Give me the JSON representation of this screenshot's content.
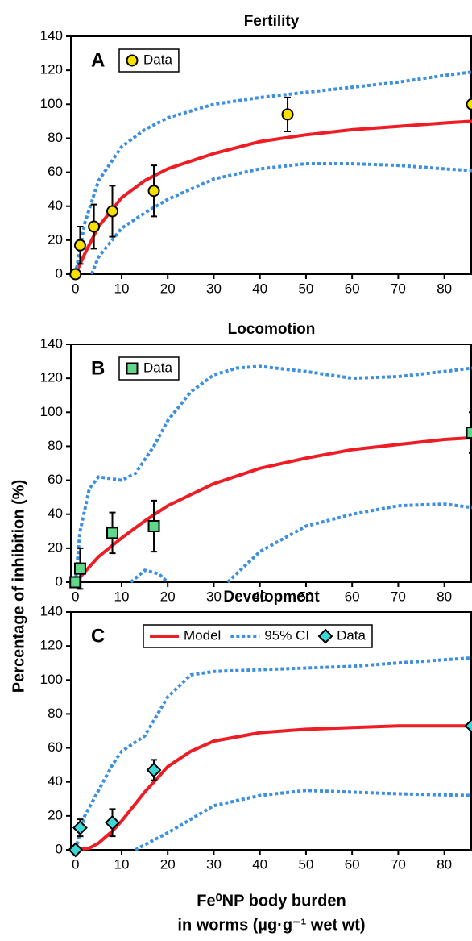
{
  "chart_data": [
    {
      "type": "line",
      "title": "Fertility",
      "panel_label": "A",
      "xlim": [
        -1,
        86
      ],
      "xticks": [
        0,
        10,
        20,
        30,
        40,
        50,
        60,
        70,
        80
      ],
      "ylim": [
        0,
        140
      ],
      "yticks": [
        0,
        20,
        40,
        60,
        80,
        100,
        120,
        140
      ],
      "series": [
        {
          "mode": "line",
          "color": "#ee1c25",
          "x": [
            0,
            2,
            5,
            10,
            15,
            20,
            30,
            40,
            50,
            60,
            70,
            80,
            86
          ],
          "values": [
            0,
            12,
            28,
            45,
            55,
            62,
            71,
            78,
            82,
            85,
            87,
            89,
            90
          ]
        },
        {
          "mode": "line",
          "style": "dotted",
          "color": "#3d8fe0",
          "x": [
            0,
            2,
            5,
            10,
            15,
            20,
            30,
            40,
            50,
            60,
            70,
            80,
            86
          ],
          "values": [
            0,
            30,
            55,
            75,
            85,
            92,
            100,
            104,
            107,
            110,
            113,
            117,
            119
          ]
        },
        {
          "mode": "line",
          "style": "dotted",
          "color": "#3d8fe0",
          "x": [
            3.5,
            5,
            10,
            15,
            20,
            30,
            40,
            50,
            60,
            70,
            80,
            86
          ],
          "values": [
            0,
            10,
            27,
            36,
            44,
            56,
            62,
            65,
            65,
            64,
            62,
            61
          ]
        },
        {
          "mode": "markers",
          "name": "Data",
          "marker": "circle",
          "color": "#f5e000",
          "x": [
            0,
            1,
            4,
            8,
            17,
            46,
            86
          ],
          "values": [
            0,
            17,
            28,
            37,
            49,
            94,
            100
          ],
          "errors": [
            null,
            11,
            13,
            15,
            15,
            10,
            null
          ]
        }
      ]
    },
    {
      "type": "line",
      "title": "Locomotion",
      "panel_label": "B",
      "ylabel": "Percentage of inhibition (%)",
      "xlim": [
        -1,
        86
      ],
      "xticks": [
        0,
        10,
        20,
        30,
        40,
        50,
        60,
        70,
        80
      ],
      "ylim": [
        0,
        140
      ],
      "yticks": [
        0,
        20,
        40,
        60,
        80,
        100,
        120,
        140
      ],
      "series": [
        {
          "mode": "line",
          "color": "#ee1c25",
          "x": [
            0,
            5,
            10,
            15,
            20,
            30,
            40,
            50,
            60,
            70,
            80,
            86
          ],
          "values": [
            0,
            15,
            26,
            36,
            45,
            58,
            67,
            73,
            78,
            81,
            84,
            85
          ]
        },
        {
          "mode": "line",
          "style": "dotted",
          "color": "#3d8fe0",
          "x": [
            0,
            1,
            3,
            5,
            10,
            13,
            17,
            20,
            25,
            30,
            35,
            40,
            50,
            60,
            70,
            80,
            86
          ],
          "values": [
            0,
            30,
            55,
            62,
            60,
            64,
            80,
            95,
            112,
            122,
            126,
            127,
            124,
            120,
            121,
            124,
            126
          ]
        },
        {
          "mode": "line",
          "style": "dotted",
          "color": "#3d8fe0",
          "x": [
            12,
            15,
            18,
            20,
            27,
            33,
            40,
            50,
            60,
            70,
            80,
            86
          ],
          "values": [
            0,
            7,
            5,
            0,
            null,
            0,
            18,
            33,
            40,
            45,
            46,
            44
          ]
        },
        {
          "mode": "markers",
          "name": "Data",
          "marker": "square",
          "color": "#5fd88a",
          "x": [
            0,
            1,
            8,
            17,
            86
          ],
          "values": [
            0,
            8,
            29,
            33,
            88
          ],
          "errors": [
            null,
            12,
            12,
            15,
            12
          ]
        }
      ]
    },
    {
      "type": "line",
      "title": "Development",
      "panel_label": "C",
      "xlabel": [
        "Fe⁰NP body burden",
        "in worms (µg·g⁻¹ wet wt)"
      ],
      "xlim": [
        -1,
        86
      ],
      "xticks": [
        0,
        10,
        20,
        30,
        40,
        50,
        60,
        70,
        80
      ],
      "ylim": [
        0,
        140
      ],
      "yticks": [
        0,
        20,
        40,
        60,
        80,
        100,
        120,
        140
      ],
      "series": [
        {
          "mode": "line",
          "name": "Model",
          "color": "#ee1c25",
          "x": [
            0,
            3,
            5,
            8,
            10,
            15,
            20,
            25,
            30,
            40,
            50,
            60,
            70,
            86
          ],
          "values": [
            0,
            1,
            4,
            11,
            17,
            34,
            49,
            58,
            64,
            69,
            71,
            72,
            73,
            73
          ]
        },
        {
          "mode": "line",
          "style": "dotted",
          "name": "95% CI",
          "color": "#3d8fe0",
          "x": [
            0,
            2,
            5,
            8,
            10,
            15,
            20,
            25,
            30,
            40,
            50,
            60,
            70,
            86
          ],
          "values": [
            0,
            20,
            35,
            50,
            58,
            67,
            90,
            103,
            105,
            106,
            107,
            108,
            110,
            113
          ]
        },
        {
          "mode": "line",
          "style": "dotted",
          "color": "#3d8fe0",
          "x": [
            13,
            15,
            20,
            25,
            30,
            40,
            50,
            60,
            70,
            86
          ],
          "values": [
            0,
            3,
            10,
            18,
            26,
            32,
            35,
            34,
            33,
            32
          ]
        },
        {
          "mode": "markers",
          "name": "Data",
          "marker": "diamond",
          "color": "#3ed6d6",
          "x": [
            0,
            1,
            8,
            17,
            86
          ],
          "values": [
            0,
            13,
            16,
            47,
            73
          ],
          "errors": [
            null,
            5,
            8,
            6,
            null
          ]
        }
      ]
    }
  ]
}
